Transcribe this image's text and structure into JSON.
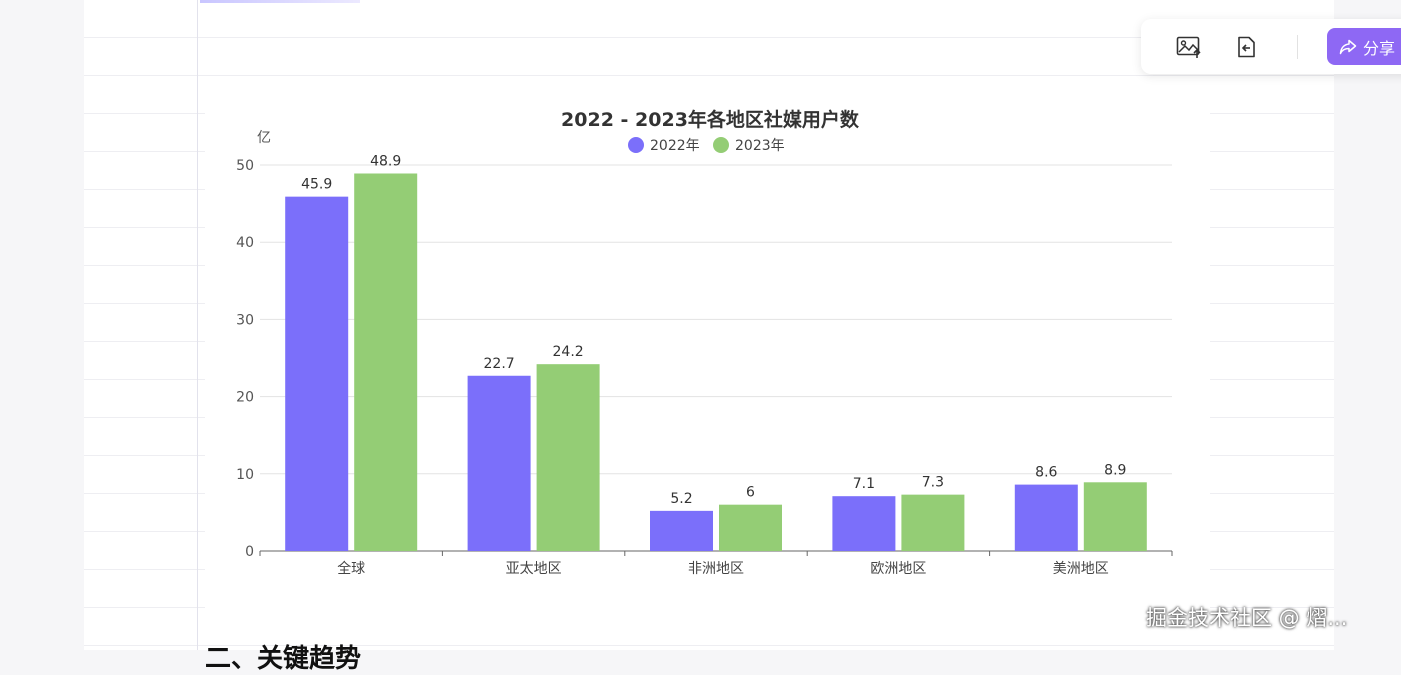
{
  "toolbar": {
    "image_button_icon": "image-upload-icon",
    "back_button_icon": "file-back-icon",
    "share_icon": "share-arrow-icon",
    "share_label": "分享"
  },
  "watermark": "掘金技术社区 @ 熠...",
  "bottom_heading": "二、关键趋势",
  "chart_data": {
    "type": "bar",
    "title": "2022 - 2023年各地区社媒用户数",
    "ylabel": "亿",
    "xlabel": "",
    "categories": [
      "全球",
      "亚太地区",
      "非洲地区",
      "欧洲地区",
      "美洲地区"
    ],
    "series": [
      {
        "name": "2022年",
        "values": [
          45.9,
          22.7,
          5.2,
          7.1,
          8.6
        ],
        "color": "#7b6ffa"
      },
      {
        "name": "2023年",
        "values": [
          48.9,
          24.2,
          6,
          7.3,
          8.9
        ],
        "color": "#94cd75"
      }
    ],
    "ylim": [
      0,
      50
    ],
    "yticks": [
      0,
      10,
      20,
      30,
      40,
      50
    ],
    "grid": true,
    "legend": "top-center"
  }
}
